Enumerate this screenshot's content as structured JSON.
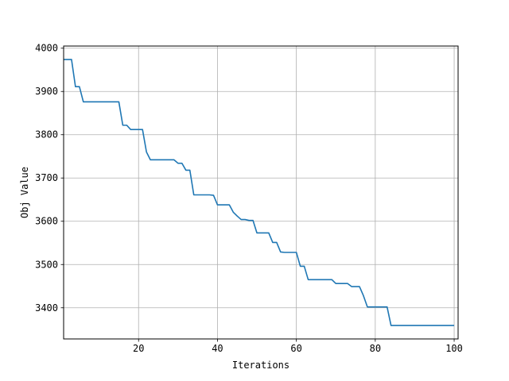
{
  "chart_data": {
    "type": "line",
    "title": "",
    "xlabel": "Iterations",
    "ylabel": "Obj Value",
    "xlim": [
      1,
      101
    ],
    "ylim": [
      3328,
      4005
    ],
    "xticks": [
      20,
      40,
      60,
      80,
      100
    ],
    "yticks": [
      3400,
      3500,
      3600,
      3700,
      3800,
      3900,
      4000
    ],
    "grid": true,
    "legend": "none",
    "series": [
      {
        "color": "#1f77b4",
        "x": [
          1,
          2,
          3,
          4,
          5,
          6,
          7,
          8,
          9,
          10,
          11,
          12,
          13,
          14,
          15,
          16,
          17,
          18,
          19,
          20,
          21,
          22,
          23,
          24,
          25,
          26,
          27,
          28,
          29,
          30,
          31,
          32,
          33,
          34,
          35,
          36,
          37,
          38,
          39,
          40,
          41,
          42,
          43,
          44,
          45,
          46,
          47,
          48,
          49,
          50,
          51,
          52,
          53,
          54,
          55,
          56,
          57,
          58,
          59,
          60,
          61,
          62,
          63,
          64,
          65,
          66,
          67,
          68,
          69,
          70,
          71,
          72,
          73,
          74,
          75,
          76,
          77,
          78,
          79,
          80,
          81,
          82,
          83,
          84,
          85,
          86,
          87,
          88,
          89,
          90,
          91,
          92,
          93,
          94,
          95,
          96,
          97,
          98,
          99,
          100
        ],
        "values": [
          3974,
          3974,
          3974,
          3911,
          3911,
          3876,
          3876,
          3876,
          3876,
          3876,
          3876,
          3876,
          3876,
          3876,
          3876,
          3822,
          3822,
          3812,
          3812,
          3812,
          3812,
          3760,
          3742,
          3742,
          3742,
          3742,
          3742,
          3742,
          3742,
          3734,
          3734,
          3718,
          3718,
          3661,
          3661,
          3661,
          3661,
          3661,
          3660,
          3638,
          3638,
          3638,
          3638,
          3621,
          3612,
          3604,
          3604,
          3602,
          3602,
          3573,
          3573,
          3573,
          3573,
          3551,
          3551,
          3529,
          3528,
          3528,
          3528,
          3528,
          3496,
          3496,
          3465,
          3465,
          3465,
          3465,
          3465,
          3465,
          3465,
          3456,
          3456,
          3456,
          3456,
          3449,
          3449,
          3449,
          3428,
          3402,
          3402,
          3402,
          3402,
          3402,
          3402,
          3359,
          3359,
          3359,
          3359,
          3359,
          3359,
          3359,
          3359,
          3359,
          3359,
          3359,
          3359,
          3359,
          3359,
          3359,
          3359,
          3359
        ]
      }
    ]
  }
}
